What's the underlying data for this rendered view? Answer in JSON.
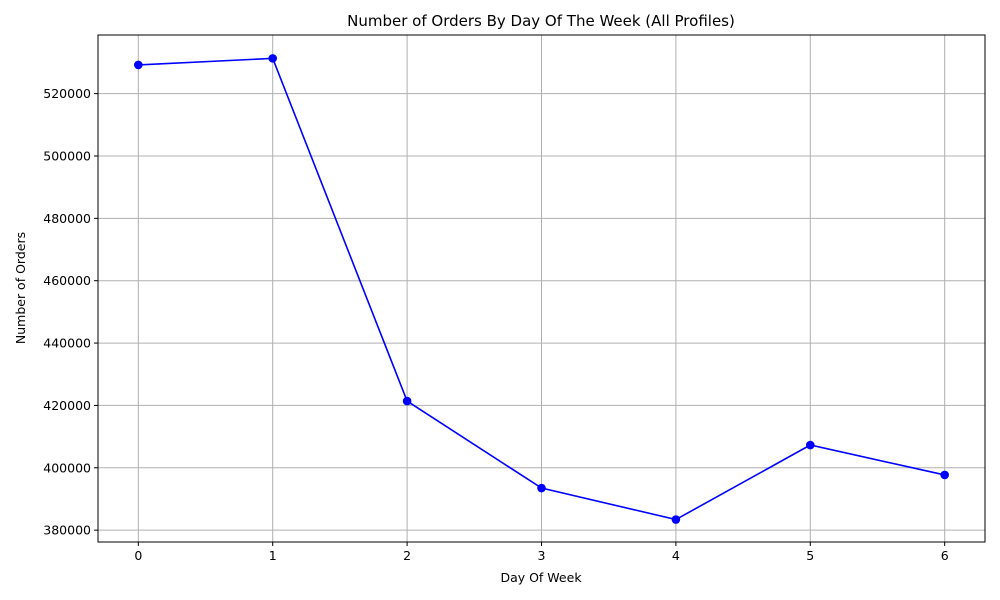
{
  "chart_data": {
    "type": "line",
    "title": "Number of Orders By Day Of The Week (All Profiles)",
    "xlabel": "Day Of Week",
    "ylabel": "Number of Orders",
    "x": [
      0,
      1,
      2,
      3,
      4,
      5,
      6
    ],
    "xticks": [
      "0",
      "1",
      "2",
      "3",
      "4",
      "5",
      "6"
    ],
    "xlim": [
      -0.3,
      6.3
    ],
    "yticks": [
      "380000",
      "400000",
      "420000",
      "440000",
      "460000",
      "480000",
      "500000",
      "520000"
    ],
    "ylim": [
      376200,
      538800
    ],
    "series": [
      {
        "values": [
          529200,
          531300,
          421400,
          393500,
          383400,
          407300,
          397700
        ]
      }
    ],
    "line_color": "#0000ff",
    "marker": "circle",
    "grid": true,
    "legend": "none"
  }
}
